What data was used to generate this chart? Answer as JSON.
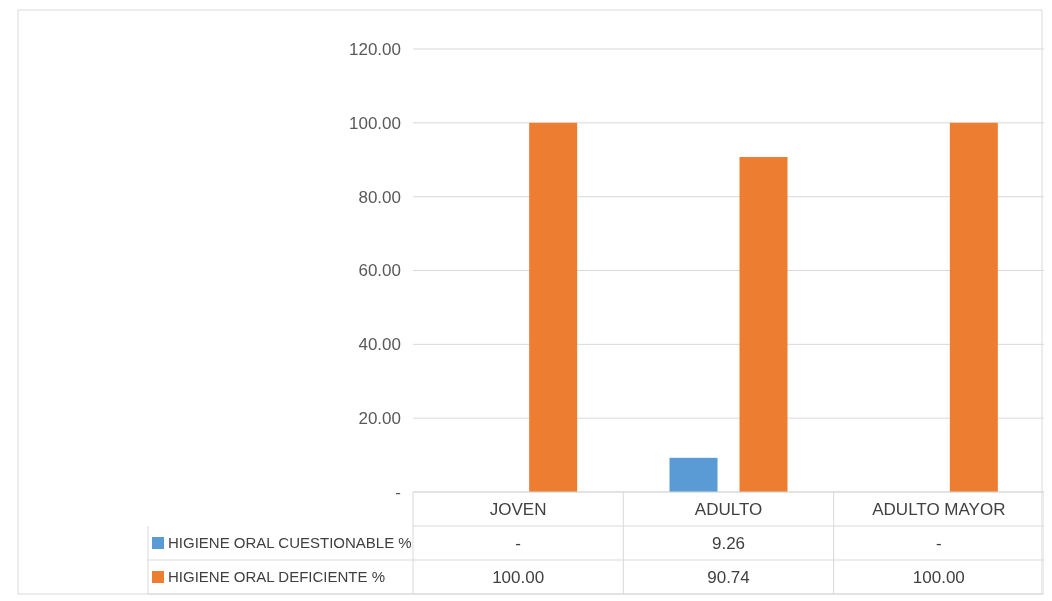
{
  "chart_data": {
    "type": "bar",
    "categories": [
      "JOVEN",
      "ADULTO",
      "ADULTO MAYOR"
    ],
    "series": [
      {
        "name": "HIGIENE ORAL CUESTIONABLE %",
        "color": "#5b9bd5",
        "values": [
          0,
          9.26,
          0
        ],
        "value_labels": [
          "-",
          "9.26",
          "-"
        ]
      },
      {
        "name": "HIGIENE ORAL DEFICIENTE %",
        "color": "#ed7d31",
        "values": [
          100,
          90.74,
          100
        ],
        "value_labels": [
          "100.00",
          "90.74",
          "100.00"
        ]
      }
    ],
    "ylim": [
      0,
      120
    ],
    "yticks": [
      {
        "value": 0,
        "label": "-"
      },
      {
        "value": 20,
        "label": "20.00"
      },
      {
        "value": 40,
        "label": "40.00"
      },
      {
        "value": 60,
        "label": "60.00"
      },
      {
        "value": 80,
        "label": "80.00"
      },
      {
        "value": 100,
        "label": "100.00"
      },
      {
        "value": 120,
        "label": "120.00"
      }
    ],
    "grid": "y",
    "legend": "bottom"
  }
}
